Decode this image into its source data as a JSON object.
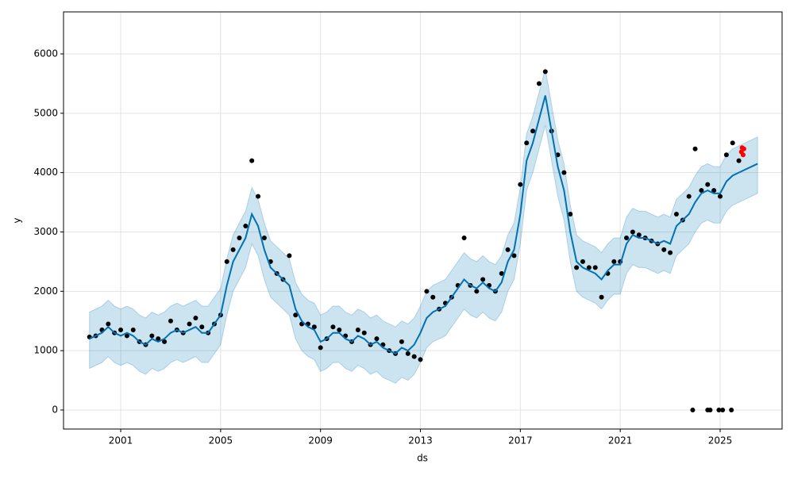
{
  "chart_data": {
    "type": "line",
    "xlabel": "ds",
    "ylabel": "y",
    "xlim": [
      1998.71,
      2027.48
    ],
    "ylim": [
      -321,
      6708
    ],
    "xticks": [
      2001,
      2005,
      2009,
      2013,
      2017,
      2021,
      2025
    ],
    "yticks": [
      0,
      1000,
      2000,
      3000,
      4000,
      5000,
      6000
    ],
    "grid": true,
    "x": [
      1999.75,
      2000,
      2000.25,
      2000.5,
      2000.75,
      2001,
      2001.25,
      2001.5,
      2001.75,
      2002,
      2002.25,
      2002.5,
      2002.75,
      2003,
      2003.25,
      2003.5,
      2003.75,
      2004,
      2004.25,
      2004.5,
      2004.75,
      2005,
      2005.25,
      2005.5,
      2005.75,
      2006,
      2006.25,
      2006.5,
      2006.75,
      2007,
      2007.25,
      2007.5,
      2007.75,
      2008,
      2008.25,
      2008.5,
      2008.75,
      2009,
      2009.25,
      2009.5,
      2009.75,
      2010,
      2010.25,
      2010.5,
      2010.75,
      2011,
      2011.25,
      2011.5,
      2011.75,
      2012,
      2012.25,
      2012.5,
      2012.75,
      2013,
      2013.25,
      2013.5,
      2013.75,
      2014,
      2014.25,
      2014.5,
      2014.75,
      2015,
      2015.25,
      2015.5,
      2015.75,
      2016,
      2016.25,
      2016.5,
      2016.75,
      2017,
      2017.25,
      2017.5,
      2017.75,
      2018,
      2018.25,
      2018.5,
      2018.75,
      2019,
      2019.25,
      2019.5,
      2019.75,
      2020,
      2020.25,
      2020.5,
      2020.75,
      2021,
      2021.25,
      2021.5,
      2021.75,
      2022,
      2022.25,
      2022.5,
      2022.75,
      2023,
      2023.25,
      2023.5,
      2023.75,
      2024,
      2024.25,
      2024.5,
      2024.75,
      2025,
      2025.25,
      2025.5,
      2025.75,
      2026,
      2026.25,
      2026.5
    ],
    "series": [
      {
        "type": "band",
        "color": "#0072B2",
        "lower": [
          700,
          750,
          800,
          900,
          800,
          750,
          800,
          750,
          650,
          600,
          700,
          650,
          700,
          800,
          850,
          800,
          850,
          900,
          800,
          800,
          950,
          1100,
          1600,
          2000,
          2200,
          2400,
          2800,
          2600,
          2200,
          1900,
          1800,
          1700,
          1600,
          1200,
          1000,
          900,
          850,
          650,
          700,
          800,
          800,
          700,
          650,
          750,
          700,
          600,
          650,
          550,
          500,
          450,
          550,
          500,
          600,
          800,
          1050,
          1150,
          1200,
          1250,
          1400,
          1550,
          1700,
          1600,
          1550,
          1650,
          1550,
          1500,
          1650,
          2000,
          2200,
          2800,
          3700,
          4000,
          4400,
          4800,
          4200,
          3600,
          3200,
          2500,
          2000,
          1900,
          1850,
          1800,
          1700,
          1850,
          1950,
          1950,
          2300,
          2450,
          2400,
          2400,
          2350,
          2300,
          2350,
          2300,
          2600,
          2700,
          2800,
          3000,
          3150,
          3200,
          3150,
          3150,
          3350,
          3450,
          3500,
          3550,
          3600,
          3650
        ],
        "upper": [
          1650,
          1700,
          1750,
          1850,
          1750,
          1700,
          1750,
          1700,
          1600,
          1550,
          1650,
          1600,
          1650,
          1750,
          1800,
          1750,
          1800,
          1850,
          1750,
          1750,
          1900,
          2050,
          2550,
          2950,
          3150,
          3350,
          3750,
          3550,
          3150,
          2850,
          2750,
          2650,
          2550,
          2150,
          1950,
          1850,
          1800,
          1600,
          1650,
          1750,
          1750,
          1650,
          1600,
          1700,
          1650,
          1550,
          1600,
          1500,
          1450,
          1400,
          1500,
          1450,
          1550,
          1750,
          2000,
          2100,
          2150,
          2200,
          2350,
          2500,
          2650,
          2550,
          2500,
          2600,
          2500,
          2450,
          2600,
          2950,
          3150,
          3750,
          4650,
          4950,
          5350,
          5750,
          5150,
          4550,
          4150,
          3450,
          2950,
          2850,
          2800,
          2750,
          2650,
          2800,
          2900,
          2900,
          3250,
          3400,
          3350,
          3350,
          3300,
          3250,
          3300,
          3250,
          3550,
          3650,
          3750,
          3950,
          4100,
          4150,
          4100,
          4100,
          4300,
          4400,
          4450,
          4500,
          4550,
          4600
        ]
      },
      {
        "type": "scatter",
        "color": "#000000",
        "values": [
          1230,
          1250,
          1350,
          1450,
          1300,
          1350,
          1250,
          1350,
          1150,
          1100,
          1250,
          1200,
          1150,
          1500,
          1350,
          1300,
          1450,
          1550,
          1400,
          1300,
          1450,
          1600,
          2500,
          2700,
          2900,
          3100,
          4200,
          3600,
          2900,
          2500,
          2300,
          2200,
          2600,
          1600,
          1450,
          1450,
          1400,
          1050,
          1200,
          1400,
          1350,
          1250,
          1150,
          1350,
          1300,
          1100,
          1200,
          1100,
          1000,
          950,
          1150,
          950,
          900,
          850,
          2000,
          1900,
          1700,
          1800,
          1900,
          2100,
          2900,
          2100,
          2000,
          2200,
          2100,
          2000,
          2300,
          2700,
          2600,
          3800,
          4500,
          4700,
          5500,
          5700,
          4700,
          4300,
          4000,
          3300,
          2400,
          2500,
          2400,
          2400,
          1900,
          2300,
          2500,
          2500,
          2900,
          3000,
          2950,
          2900,
          2850,
          2800,
          2700,
          2650,
          3300,
          3200,
          3600,
          4400,
          3700,
          3800,
          3700,
          3600,
          4300,
          4500,
          4200,
          null,
          null,
          null
        ]
      },
      {
        "type": "line",
        "color": "#0072B2",
        "values": [
          1200,
          1250,
          1300,
          1400,
          1300,
          1250,
          1300,
          1250,
          1150,
          1100,
          1200,
          1150,
          1200,
          1300,
          1350,
          1300,
          1350,
          1400,
          1300,
          1300,
          1450,
          1600,
          2100,
          2500,
          2700,
          2900,
          3300,
          3100,
          2700,
          2400,
          2300,
          2200,
          2100,
          1700,
          1500,
          1400,
          1350,
          1150,
          1200,
          1300,
          1300,
          1200,
          1150,
          1250,
          1200,
          1100,
          1150,
          1050,
          1000,
          950,
          1050,
          1000,
          1100,
          1300,
          1550,
          1650,
          1700,
          1750,
          1900,
          2050,
          2200,
          2100,
          2050,
          2150,
          2050,
          2000,
          2150,
          2500,
          2700,
          3300,
          4200,
          4500,
          4900,
          5300,
          4700,
          4100,
          3700,
          3000,
          2500,
          2400,
          2350,
          2300,
          2200,
          2350,
          2450,
          2450,
          2800,
          2950,
          2900,
          2900,
          2850,
          2800,
          2850,
          2800,
          3100,
          3200,
          3300,
          3500,
          3650,
          3700,
          3650,
          3650,
          3850,
          3950,
          4000,
          4050,
          4100,
          4150
        ]
      },
      {
        "type": "scatter",
        "color": "#000000",
        "x": [
          2023.9,
          2024.5,
          2024.6,
          2024.95,
          2025.1,
          2025.45
        ],
        "values": [
          0,
          0,
          0,
          0,
          0,
          0
        ]
      },
      {
        "type": "scatter",
        "color": "#ff0000",
        "x": [
          2025.85,
          2025.88,
          2025.92,
          2025.95
        ],
        "values": [
          4350,
          4420,
          4300,
          4400
        ]
      }
    ]
  }
}
